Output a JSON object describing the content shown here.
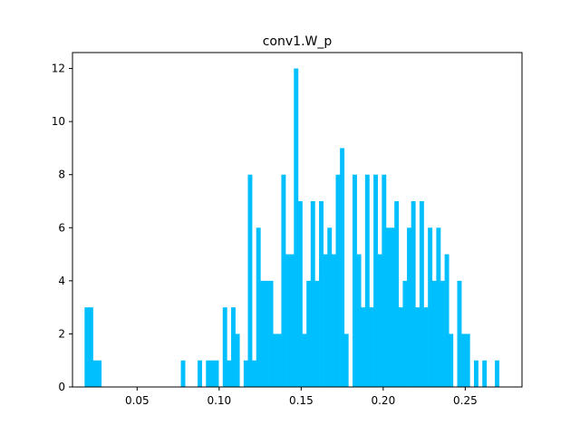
{
  "chart_data": {
    "type": "bar",
    "title": "conv1.W_p",
    "xlabel": "",
    "ylabel": "",
    "xlim": [
      0.0106,
      0.2846
    ],
    "ylim": [
      0,
      12.6
    ],
    "xticks": [
      0.05,
      0.1,
      0.15,
      0.2,
      0.25
    ],
    "xtick_labels": [
      "0.05",
      "0.10",
      "0.15",
      "0.20",
      "0.25"
    ],
    "yticks": [
      0,
      2,
      4,
      6,
      8,
      10,
      12
    ],
    "ytick_labels": [
      "0",
      "2",
      "4",
      "6",
      "8",
      "10",
      "12"
    ],
    "grid": false,
    "bar_color": "#00bfff",
    "bin_width": 0.002552,
    "bins": [
      [
        0.01796,
        3
      ],
      [
        0.02051,
        3
      ],
      [
        0.02306,
        1
      ],
      [
        0.02561,
        1
      ],
      [
        0.07665,
        1
      ],
      [
        0.08686,
        1
      ],
      [
        0.09196,
        1
      ],
      [
        0.09452,
        1
      ],
      [
        0.09707,
        1
      ],
      [
        0.10217,
        3
      ],
      [
        0.10472,
        1
      ],
      [
        0.10728,
        3
      ],
      [
        0.10983,
        2
      ],
      [
        0.11493,
        1
      ],
      [
        0.11749,
        8
      ],
      [
        0.12004,
        1
      ],
      [
        0.12259,
        6
      ],
      [
        0.12514,
        4
      ],
      [
        0.1277,
        4
      ],
      [
        0.13025,
        4
      ],
      [
        0.1328,
        2
      ],
      [
        0.13535,
        2
      ],
      [
        0.1379,
        8
      ],
      [
        0.14046,
        5
      ],
      [
        0.14301,
        5
      ],
      [
        0.14556,
        12
      ],
      [
        0.14811,
        7
      ],
      [
        0.15067,
        2
      ],
      [
        0.15322,
        4
      ],
      [
        0.15577,
        7
      ],
      [
        0.15832,
        4
      ],
      [
        0.16088,
        7
      ],
      [
        0.16343,
        5
      ],
      [
        0.16598,
        6
      ],
      [
        0.16853,
        5
      ],
      [
        0.17108,
        8
      ],
      [
        0.17364,
        9
      ],
      [
        0.17619,
        2
      ],
      [
        0.18129,
        8
      ],
      [
        0.18385,
        5
      ],
      [
        0.1864,
        3
      ],
      [
        0.18895,
        8
      ],
      [
        0.1915,
        3
      ],
      [
        0.19406,
        8
      ],
      [
        0.19661,
        5
      ],
      [
        0.19916,
        8
      ],
      [
        0.20171,
        6
      ],
      [
        0.20426,
        6
      ],
      [
        0.20682,
        7
      ],
      [
        0.20937,
        3
      ],
      [
        0.21192,
        4
      ],
      [
        0.21447,
        6
      ],
      [
        0.21703,
        7
      ],
      [
        0.21958,
        3
      ],
      [
        0.22213,
        7
      ],
      [
        0.22468,
        3
      ],
      [
        0.22724,
        6
      ],
      [
        0.22979,
        4
      ],
      [
        0.23234,
        6
      ],
      [
        0.23489,
        4
      ],
      [
        0.23744,
        5
      ],
      [
        0.24,
        2
      ],
      [
        0.2451,
        4
      ],
      [
        0.24765,
        2
      ],
      [
        0.25021,
        2
      ],
      [
        0.25531,
        1
      ],
      [
        0.26042,
        1
      ],
      [
        0.26808,
        1
      ]
    ]
  }
}
